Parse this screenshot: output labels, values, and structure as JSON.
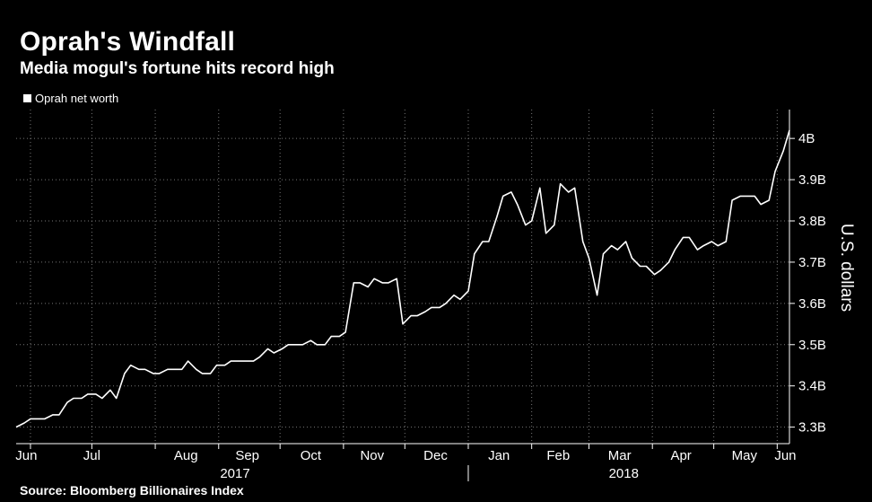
{
  "header": {
    "title": "Oprah's Windfall",
    "subtitle": "Media mogul's fortune hits record high"
  },
  "footer": {
    "source": "Source: Bloomberg Billionaires Index"
  },
  "colors": {
    "background": "#000000",
    "line": "#ffffff",
    "grid": "#777777"
  },
  "chart_data": {
    "type": "line",
    "title": "Oprah's Windfall",
    "subtitle": "Media mogul's fortune hits record high",
    "ylabel": "U.S. dollars",
    "ylim": [
      3.26,
      4.07
    ],
    "grid": true,
    "legend_position": "top-left",
    "y_ticks": [
      {
        "value": 3.3,
        "label": "3.3B"
      },
      {
        "value": 3.4,
        "label": "3.4B"
      },
      {
        "value": 3.5,
        "label": "3.5B"
      },
      {
        "value": 3.6,
        "label": "3.6B"
      },
      {
        "value": 3.7,
        "label": "3.7B"
      },
      {
        "value": 3.8,
        "label": "3.8B"
      },
      {
        "value": 3.9,
        "label": "3.9B"
      },
      {
        "value": 4.0,
        "label": "4B"
      }
    ],
    "x_ticks": [
      "Jun",
      "Jul",
      "Aug",
      "Sep",
      "Oct",
      "Nov",
      "Dec",
      "Jan",
      "Feb",
      "Mar",
      "Apr",
      "May",
      "Jun"
    ],
    "years": [
      "2017",
      "2018"
    ],
    "series": [
      {
        "name": "Oprah net worth",
        "x": [
          "2017-05-25",
          "2017-05-29",
          "2017-06-01",
          "2017-06-05",
          "2017-06-08",
          "2017-06-12",
          "2017-06-15",
          "2017-06-19",
          "2017-06-22",
          "2017-06-26",
          "2017-06-29",
          "2017-07-03",
          "2017-07-06",
          "2017-07-10",
          "2017-07-13",
          "2017-07-17",
          "2017-07-20",
          "2017-07-24",
          "2017-07-27",
          "2017-07-31",
          "2017-08-03",
          "2017-08-07",
          "2017-08-10",
          "2017-08-14",
          "2017-08-17",
          "2017-08-21",
          "2017-08-24",
          "2017-08-28",
          "2017-08-31",
          "2017-09-04",
          "2017-09-07",
          "2017-09-11",
          "2017-09-14",
          "2017-09-18",
          "2017-09-21",
          "2017-09-25",
          "2017-09-28",
          "2017-10-02",
          "2017-10-05",
          "2017-10-09",
          "2017-10-12",
          "2017-10-16",
          "2017-10-19",
          "2017-10-23",
          "2017-10-26",
          "2017-10-30",
          "2017-11-02",
          "2017-11-06",
          "2017-11-09",
          "2017-11-13",
          "2017-11-16",
          "2017-11-20",
          "2017-11-23",
          "2017-11-27",
          "2017-11-30",
          "2017-12-04",
          "2017-12-07",
          "2017-12-11",
          "2017-12-14",
          "2017-12-18",
          "2017-12-21",
          "2017-12-25",
          "2017-12-28",
          "2018-01-01",
          "2018-01-04",
          "2018-01-08",
          "2018-01-11",
          "2018-01-15",
          "2018-01-18",
          "2018-01-22",
          "2018-01-25",
          "2018-01-29",
          "2018-02-01",
          "2018-02-05",
          "2018-02-08",
          "2018-02-12",
          "2018-02-15",
          "2018-02-19",
          "2018-02-22",
          "2018-02-26",
          "2018-03-01",
          "2018-03-05",
          "2018-03-08",
          "2018-03-12",
          "2018-03-15",
          "2018-03-19",
          "2018-03-22",
          "2018-03-26",
          "2018-03-29",
          "2018-04-02",
          "2018-04-05",
          "2018-04-09",
          "2018-04-12",
          "2018-04-16",
          "2018-04-19",
          "2018-04-23",
          "2018-04-26",
          "2018-04-30",
          "2018-05-03",
          "2018-05-07",
          "2018-05-10",
          "2018-05-14",
          "2018-05-17",
          "2018-05-21",
          "2018-05-24",
          "2018-05-28",
          "2018-05-31",
          "2018-06-04",
          "2018-06-07"
        ],
        "values": [
          3.3,
          3.31,
          3.32,
          3.32,
          3.32,
          3.33,
          3.33,
          3.36,
          3.37,
          3.37,
          3.38,
          3.38,
          3.37,
          3.39,
          3.37,
          3.43,
          3.45,
          3.44,
          3.44,
          3.43,
          3.43,
          3.44,
          3.44,
          3.44,
          3.46,
          3.44,
          3.43,
          3.43,
          3.45,
          3.45,
          3.46,
          3.46,
          3.46,
          3.46,
          3.47,
          3.49,
          3.48,
          3.49,
          3.5,
          3.5,
          3.5,
          3.51,
          3.5,
          3.5,
          3.52,
          3.52,
          3.53,
          3.65,
          3.65,
          3.64,
          3.66,
          3.65,
          3.65,
          3.66,
          3.55,
          3.57,
          3.57,
          3.58,
          3.59,
          3.59,
          3.6,
          3.62,
          3.61,
          3.63,
          3.72,
          3.75,
          3.75,
          3.81,
          3.86,
          3.87,
          3.84,
          3.79,
          3.8,
          3.88,
          3.77,
          3.79,
          3.89,
          3.87,
          3.88,
          3.75,
          3.71,
          3.62,
          3.72,
          3.74,
          3.73,
          3.75,
          3.71,
          3.69,
          3.69,
          3.67,
          3.68,
          3.7,
          3.73,
          3.76,
          3.76,
          3.73,
          3.74,
          3.75,
          3.74,
          3.75,
          3.85,
          3.86,
          3.86,
          3.86,
          3.84,
          3.85,
          3.92,
          3.97,
          4.02
        ]
      }
    ]
  }
}
